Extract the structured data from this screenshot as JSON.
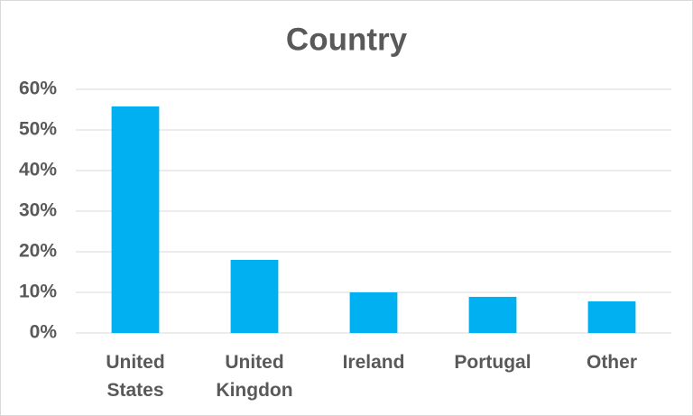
{
  "chart_data": {
    "type": "bar",
    "title": "Country",
    "categories": [
      "United States",
      "United Kingdon",
      "Ireland",
      "Portugal",
      "Other"
    ],
    "values": [
      55.8,
      18.0,
      10.0,
      8.9,
      7.8
    ],
    "color": "#00b0f0",
    "ylim": [
      0,
      60
    ],
    "yticks": [
      {
        "value": 0,
        "label": "0%"
      },
      {
        "value": 10,
        "label": "10%"
      },
      {
        "value": 20,
        "label": "20%"
      },
      {
        "value": 30,
        "label": "30%"
      },
      {
        "value": 40,
        "label": "40%"
      },
      {
        "value": 50,
        "label": "50%"
      },
      {
        "value": 60,
        "label": "60%"
      }
    ],
    "grid": true
  }
}
